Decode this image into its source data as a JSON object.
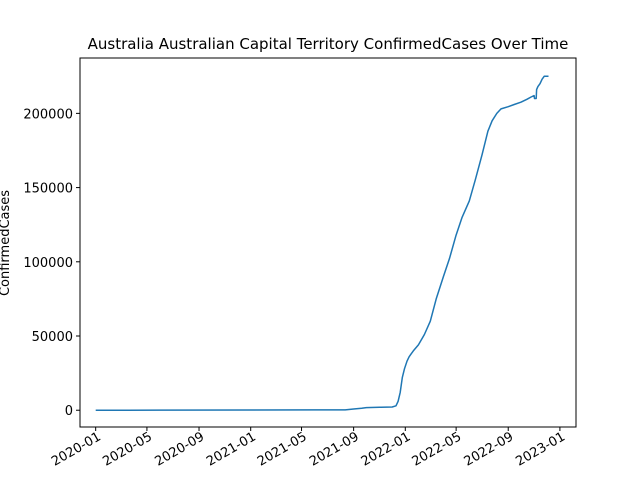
{
  "chart_data": {
    "type": "line",
    "title": "Australia Australian Capital Territory ConfirmedCases Over Time",
    "xlabel": "",
    "ylabel": "ConfirmedCases",
    "grid": false,
    "legend": "none",
    "xlim": [
      "2019-11-25",
      "2023-02-08"
    ],
    "ylim": [
      -11300,
      237300
    ],
    "x_ticks": [
      "2020-01",
      "2020-05",
      "2020-09",
      "2021-01",
      "2021-05",
      "2021-09",
      "2022-01",
      "2022-05",
      "2022-09",
      "2023-01"
    ],
    "y_ticks": [
      0,
      50000,
      100000,
      150000,
      200000
    ],
    "y_tick_labels": [
      "0",
      "50000",
      "100000",
      "150000",
      "200000"
    ],
    "colors": {
      "line": "#1f77b4"
    },
    "series": [
      {
        "x": [
          "2020-01-01",
          "2020-03-15",
          "2020-06-01",
          "2021-01-01",
          "2021-06-01",
          "2021-08-12",
          "2021-09-01",
          "2021-09-20",
          "2021-10-01",
          "2021-11-01",
          "2021-12-01",
          "2021-12-10",
          "2021-12-15",
          "2021-12-20",
          "2021-12-25",
          "2021-12-30",
          "2022-01-05",
          "2022-01-10",
          "2022-01-15",
          "2022-01-20",
          "2022-02-01",
          "2022-02-15",
          "2022-03-01",
          "2022-03-15",
          "2022-04-01",
          "2022-04-15",
          "2022-05-01",
          "2022-05-15",
          "2022-06-01",
          "2022-06-15",
          "2022-07-01",
          "2022-07-15",
          "2022-07-25",
          "2022-08-05",
          "2022-08-15",
          "2022-09-01",
          "2022-09-15",
          "2022-10-01",
          "2022-10-15",
          "2022-10-25",
          "2022-11-01",
          "2022-11-02",
          "2022-11-06",
          "2022-11-07",
          "2022-11-10",
          "2022-11-15",
          "2022-11-20",
          "2022-11-25",
          "2022-12-01",
          "2022-12-05"
        ],
        "values": [
          0,
          50,
          100,
          150,
          200,
          250,
          800,
          1300,
          1800,
          2000,
          2200,
          3000,
          6000,
          12000,
          22000,
          28000,
          33000,
          36000,
          38000,
          40000,
          44000,
          51000,
          60000,
          75000,
          90000,
          102000,
          118000,
          130000,
          141000,
          155000,
          172000,
          188000,
          195000,
          200000,
          203000,
          204500,
          206000,
          207500,
          209500,
          211000,
          212000,
          210000,
          210000,
          216000,
          218000,
          220000,
          223000,
          225000,
          225000,
          225000
        ]
      }
    ]
  }
}
